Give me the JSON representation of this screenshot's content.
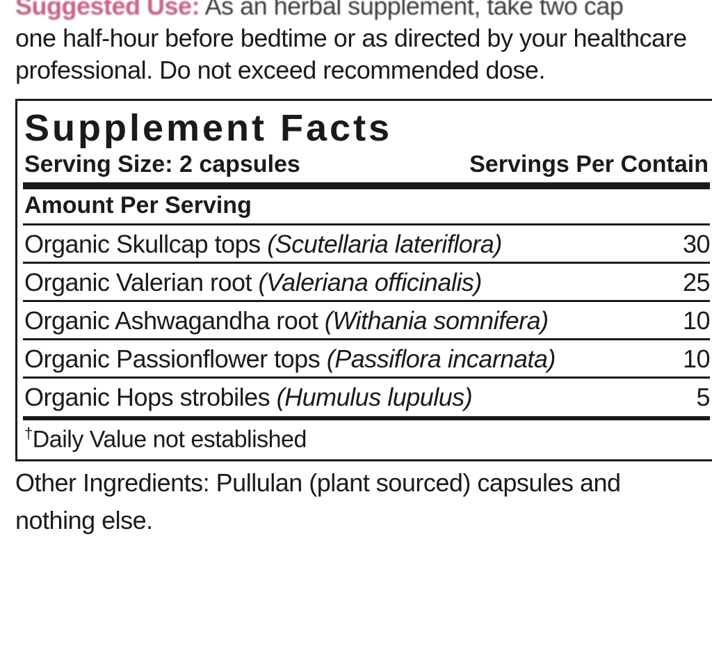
{
  "suggested": {
    "lead": "Suggested Use:",
    "rest1": " As an herbal supplement, take two cap",
    "line2": "one half-hour before bedtime or as directed by your healthcare",
    "line3": "professional. Do not exceed recommended dose."
  },
  "facts": {
    "title": "Supplement Facts",
    "serving_size_label": "Serving Size: 2 capsules",
    "servings_per_label": "Servings Per Contain",
    "amount_header": "Amount Per Serving",
    "ingredients": [
      {
        "name": "Organic Skullcap tops ",
        "latin": "(Scutellaria lateriflora)",
        "amount": "30"
      },
      {
        "name": "Organic Valerian root ",
        "latin": "(Valeriana officinalis)",
        "amount": "25"
      },
      {
        "name": "Organic Ashwagandha root ",
        "latin": "(Withania somnifera)",
        "amount": "10"
      },
      {
        "name": "Organic Passionflower tops ",
        "latin": "(Passiflora incarnata)",
        "amount": "10"
      },
      {
        "name": "Organic Hops strobiles ",
        "latin": "(Humulus lupulus)",
        "amount": "5"
      }
    ],
    "dv_note_sup": "†",
    "dv_note": "Daily Value not established"
  },
  "other": {
    "line1": "Other Ingredients: Pullulan (plant sourced) capsules and",
    "line2": "nothing else."
  },
  "colors": {
    "text": "#1a1a1a",
    "accent": "#b9466f",
    "bg": "#ffffff"
  }
}
